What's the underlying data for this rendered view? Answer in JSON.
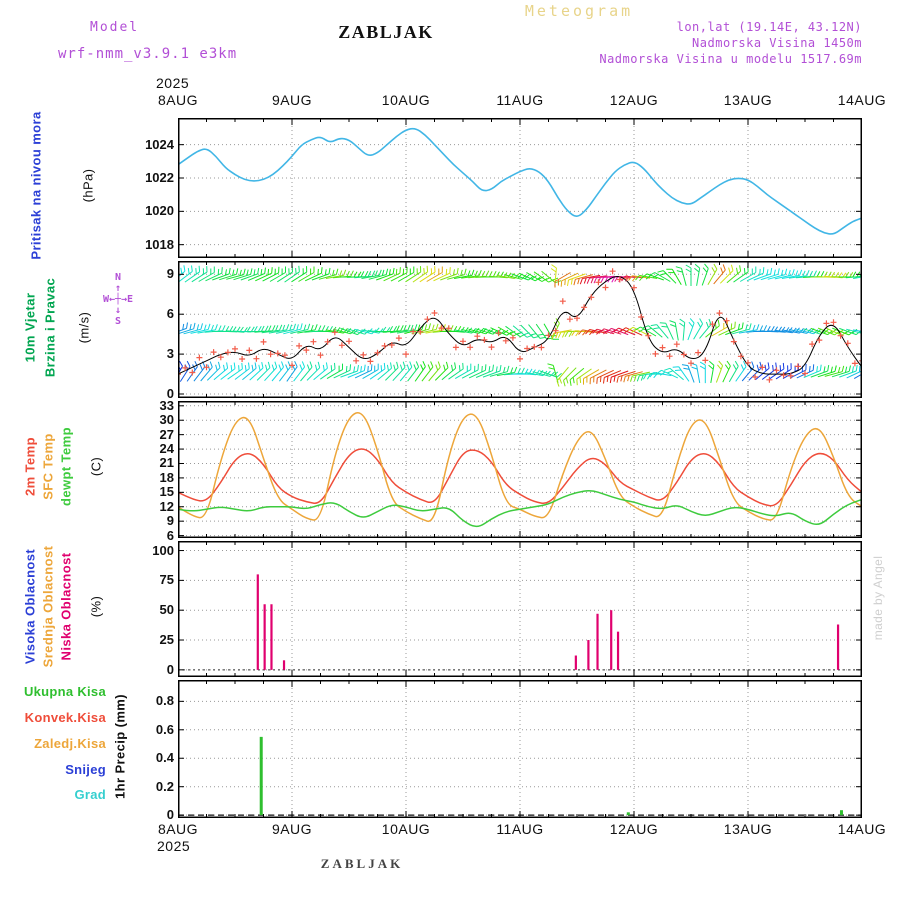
{
  "header": {
    "app_title": "Meteogram",
    "model_label": "Model",
    "model_name": "wrf-nmm_v3.9.1 e3km",
    "station": "ZABLJAK",
    "lonlat": "lon,lat (19.14E, 43.12N)",
    "elevation": "Nadmorska Visina 1450m",
    "model_elevation": "Nadmorska Visina u modelu 1517.69m"
  },
  "axis": {
    "year": "2025",
    "days": [
      "8AUG",
      "9AUG",
      "10AUG",
      "11AUG",
      "12AUG",
      "13AUG",
      "14AUG"
    ]
  },
  "compass": {
    "line1": "N",
    "line2": "↑",
    "line3": "W←┼→E",
    "line4": "↓",
    "line5": "S"
  },
  "footer": {
    "station_label": "ZABLJAK",
    "watermark": "made by Angel"
  },
  "chart_data": [
    {
      "id": "pressure",
      "type": "line",
      "title": "Pritisak na nivou mora",
      "unit": "(hPa)",
      "ylim": [
        1017.2,
        1025.6
      ],
      "yticks": [
        1018,
        1020,
        1022,
        1024
      ],
      "x_step_hours": 2,
      "series": [
        {
          "name": "Pritisak na nivou mora (hPa)",
          "color": "#41b6e6",
          "values": [
            1022.8,
            1023.2,
            1023.6,
            1023.8,
            1023.3,
            1022.6,
            1022.2,
            1021.9,
            1021.8,
            1021.9,
            1022.2,
            1022.7,
            1023.3,
            1024,
            1024.3,
            1024.5,
            1024.1,
            1024.4,
            1024.3,
            1023.8,
            1023.3,
            1023.5,
            1024,
            1024.5,
            1024.9,
            1025,
            1024.6,
            1024,
            1023.4,
            1022.8,
            1022.3,
            1021.8,
            1021.2,
            1021.3,
            1021.8,
            1022.1,
            1022.4,
            1022.6,
            1022.4,
            1021.8,
            1020.8,
            1020,
            1019.6,
            1020.1,
            1020.9,
            1021.7,
            1022.4,
            1022.8,
            1023,
            1022.6,
            1021.9,
            1021.3,
            1020.8,
            1020.5,
            1020.4,
            1020.8,
            1021.2,
            1021.6,
            1021.9,
            1022,
            1021.9,
            1021.5,
            1021,
            1020.6,
            1020.2,
            1019.8,
            1019.4,
            1019,
            1018.7,
            1018.6,
            1019,
            1019.4,
            1019.6
          ]
        }
      ]
    },
    {
      "id": "wind",
      "type": "line",
      "title_lines": [
        "10m Vjetar",
        "Brzina i Pravac"
      ],
      "unit": "(m/s)",
      "ylim": [
        -0.3,
        10
      ],
      "yticks": [
        0,
        3,
        6,
        9
      ],
      "x_step_hours": 3,
      "barb_rows": [
        8.8,
        4.7,
        1.5
      ],
      "direction_deg": [
        230,
        235,
        240,
        250,
        255,
        250,
        245,
        240,
        235,
        240,
        250,
        260,
        270,
        265,
        255,
        245,
        240,
        235,
        240,
        250,
        260,
        265,
        270,
        280,
        290,
        300,
        310,
        60,
        70,
        80,
        85,
        90,
        95,
        100,
        120,
        150,
        180,
        200,
        220,
        230,
        240,
        250,
        255,
        260,
        265,
        270,
        275,
        270,
        260
      ],
      "series": [
        {
          "name": "Brzina vjetra (m/s)",
          "color": "#000000",
          "values": [
            1.5,
            2,
            2.5,
            3,
            3.2,
            2.8,
            3.5,
            3,
            2.5,
            3.8,
            3.2,
            4.5,
            3.5,
            2.5,
            3,
            4,
            3.5,
            5,
            6,
            4.5,
            3.5,
            4.2,
            3.8,
            4.5,
            3,
            3.5,
            4,
            6.5,
            5.5,
            7.5,
            8.5,
            9,
            8,
            4,
            3,
            3.5,
            2.5,
            3,
            6.5,
            4,
            2,
            1.5,
            1.5,
            1.5,
            2,
            4.5,
            5.5,
            3.5,
            2
          ]
        },
        {
          "name": "Brzina vjetra markeri",
          "color": "#f25c4a",
          "marker": "+",
          "derived_from": "Brzina vjetra (m/s)"
        }
      ]
    },
    {
      "id": "temperature",
      "type": "line",
      "unit": "(C)",
      "ylim": [
        5.5,
        34
      ],
      "yticks": [
        6,
        9,
        12,
        15,
        18,
        21,
        24,
        27,
        30,
        33
      ],
      "x_step_hours": 3,
      "series": [
        {
          "name": "2m Temp",
          "color": "#ef4d3a",
          "values": [
            15,
            13.5,
            13,
            17,
            22,
            23.5,
            21,
            16,
            14,
            13,
            12.5,
            18,
            23,
            24.5,
            22,
            17,
            15,
            13.5,
            12.5,
            18,
            23.5,
            24,
            21.5,
            16.5,
            14.5,
            13,
            12.5,
            16,
            20,
            22.5,
            21,
            17,
            15.5,
            14,
            13,
            17,
            22,
            23.5,
            21,
            16,
            14,
            12.5,
            12,
            16.5,
            21.5,
            23.5,
            22,
            17.5,
            15
          ]
        },
        {
          "name": "SFC Temp",
          "color": "#eda63a",
          "values": [
            12,
            10,
            9.5,
            22,
            30,
            31,
            22,
            13.5,
            11.5,
            9.5,
            9,
            23,
            31,
            32,
            24,
            13,
            11,
            9.5,
            8.5,
            23,
            31,
            31.5,
            23,
            12.5,
            11.5,
            10,
            9.5,
            19,
            26,
            28.5,
            22,
            14,
            12,
            10.5,
            9.5,
            21,
            29.5,
            30.5,
            22,
            13,
            11,
            9.5,
            9,
            20,
            27,
            29,
            22.5,
            14,
            12
          ]
        },
        {
          "name": "dewpt Temp",
          "color": "#3ecb3e",
          "values": [
            11.5,
            11,
            11.5,
            12,
            11.5,
            11,
            12,
            12,
            12,
            11.5,
            12.5,
            13,
            11,
            9.5,
            11,
            12.5,
            12,
            11,
            11.5,
            12,
            9,
            7.5,
            9.5,
            11,
            11.5,
            12,
            12.5,
            14,
            15,
            15.5,
            14.5,
            13.5,
            13,
            12,
            11.5,
            12.5,
            11,
            10,
            11,
            12,
            11.5,
            10.5,
            10,
            11,
            9,
            8,
            10.5,
            12.5,
            13.5
          ]
        }
      ]
    },
    {
      "id": "cloud",
      "type": "bar",
      "unit": "(%)",
      "ylim": [
        -6,
        108
      ],
      "yticks": [
        0,
        25,
        50,
        75,
        100
      ],
      "series": [
        {
          "name": "Visoka Oblacnost",
          "color": "#2b3fd6",
          "bars": []
        },
        {
          "name": "Srednja Oblacnost",
          "color": "#eda63a",
          "bars": []
        },
        {
          "name": "Niska Oblacnost",
          "color": "#e0006e",
          "bars": [
            {
              "day": 0.7,
              "value": 80
            },
            {
              "day": 0.76,
              "value": 55
            },
            {
              "day": 0.82,
              "value": 55
            },
            {
              "day": 0.93,
              "value": 8
            },
            {
              "day": 3.49,
              "value": 12
            },
            {
              "day": 3.6,
              "value": 25
            },
            {
              "day": 3.68,
              "value": 47
            },
            {
              "day": 3.8,
              "value": 50
            },
            {
              "day": 3.86,
              "value": 32
            },
            {
              "day": 5.79,
              "value": 38
            }
          ]
        }
      ]
    },
    {
      "id": "precip",
      "type": "bar",
      "unit": "1hr Precip (mm)",
      "ylim": [
        -0.02,
        0.95
      ],
      "yticks": [
        0,
        0.2,
        0.4,
        0.6,
        0.8
      ],
      "series": [
        {
          "name": "Ukupna Kisa",
          "color": "#2fbf2f",
          "bars": [
            {
              "day": 0.73,
              "value": 0.55
            },
            {
              "day": 3.95,
              "value": 0.02
            },
            {
              "day": 5.82,
              "value": 0.035
            }
          ]
        },
        {
          "name": "Konvek.Kisa",
          "color": "#ef4d3a",
          "bars": []
        },
        {
          "name": "Zaledj.Kisa",
          "color": "#eda63a",
          "bars": []
        },
        {
          "name": "Snijeg",
          "color": "#2b3fd6",
          "bars": []
        },
        {
          "name": "Grad",
          "color": "#35cfcf",
          "bars": []
        }
      ]
    }
  ]
}
